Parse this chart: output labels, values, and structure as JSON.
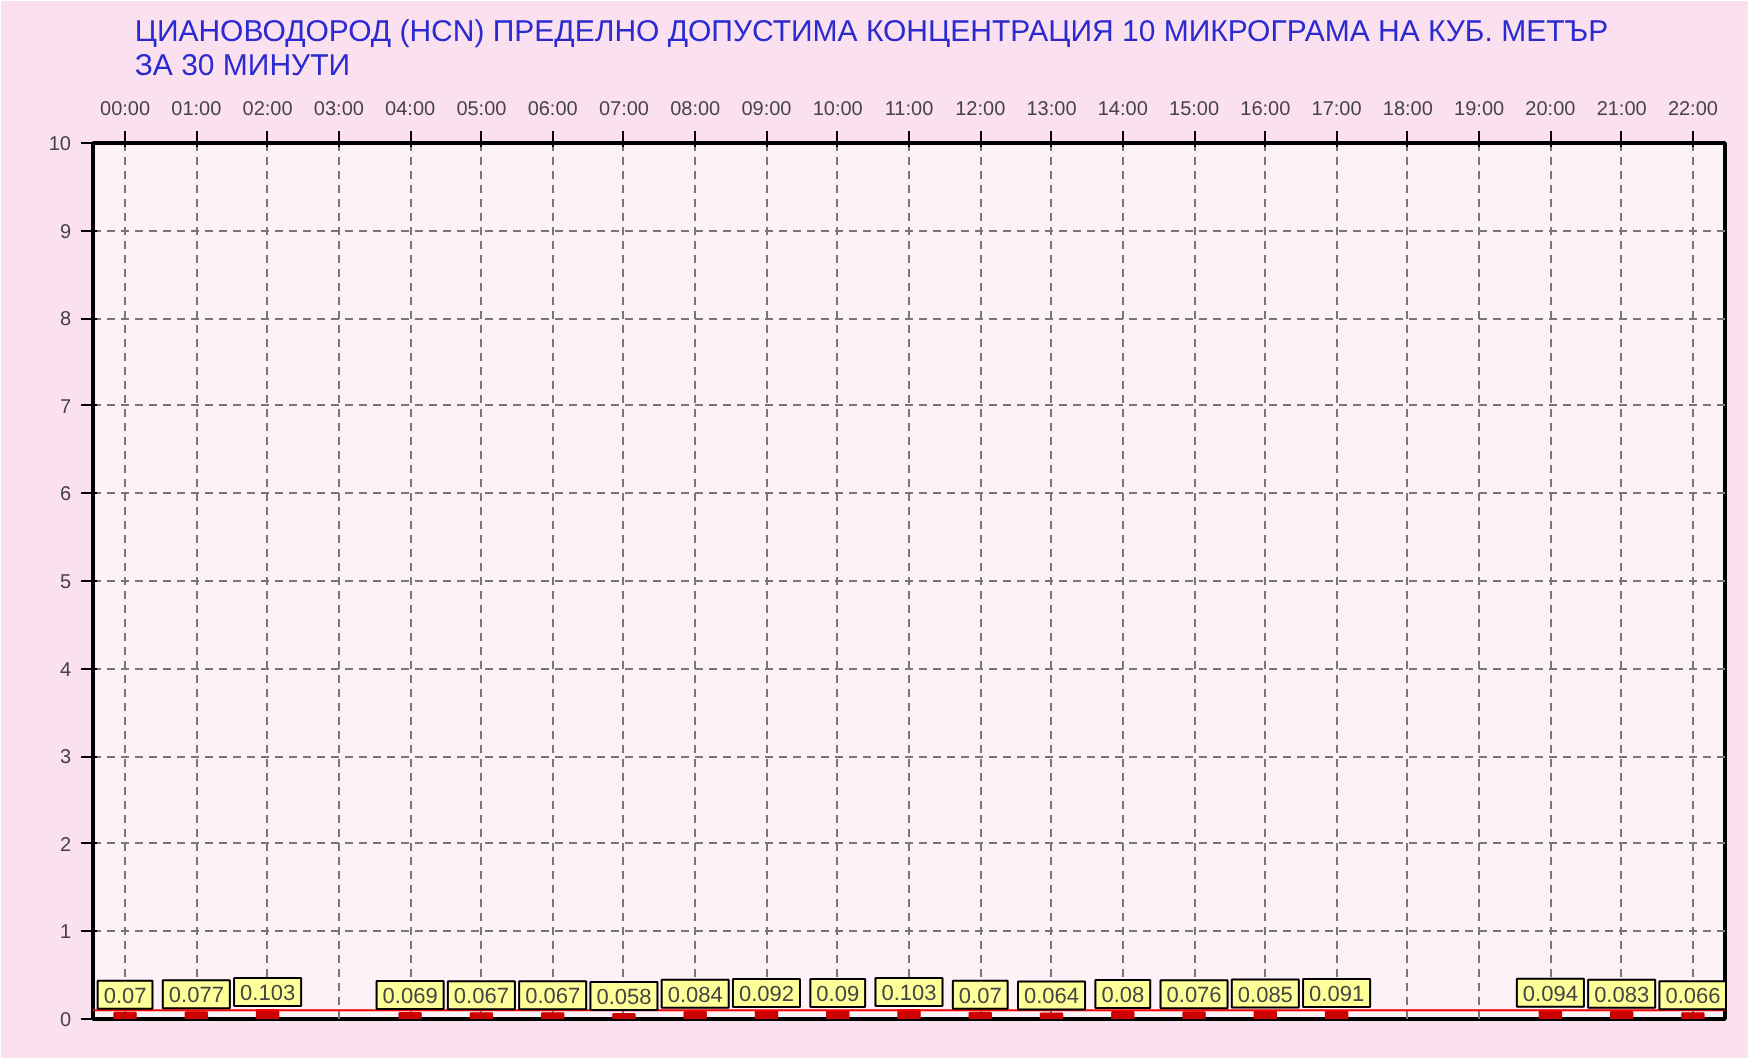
{
  "chart_data": {
    "type": "bar",
    "title": "ЦИАНОВОДОРОД      (HCN)    ПРЕДЕЛНО ДОПУСТИМА КОНЦЕНТРАЦИЯ 10 МИКРОГРАМА  НА КУБ. МЕТЪР\nЗА 30 МИНУТИ",
    "categories": [
      "00:00",
      "01:00",
      "02:00",
      "03:00",
      "04:00",
      "05:00",
      "06:00",
      "07:00",
      "08:00",
      "09:00",
      "10:00",
      "11:00",
      "12:00",
      "13:00",
      "14:00",
      "15:00",
      "16:00",
      "17:00",
      "18:00",
      "19:00",
      "20:00",
      "21:00",
      "22:00"
    ],
    "values": [
      0.07,
      0.077,
      0.103,
      null,
      0.069,
      0.067,
      0.067,
      0.058,
      0.084,
      0.092,
      0.09,
      0.103,
      0.07,
      0.064,
      0.08,
      0.076,
      0.085,
      0.091,
      null,
      null,
      0.094,
      0.083,
      0.066
    ],
    "color": "#cc0000",
    "ylim": [
      0,
      10
    ],
    "yticks": [
      0,
      1,
      2,
      3,
      4,
      5,
      6,
      7,
      8,
      9,
      10
    ],
    "grid": true,
    "data_labels": true,
    "ref_lines": [
      {
        "axis": "y",
        "value": 0.1,
        "color": "#ff0000"
      }
    ]
  }
}
